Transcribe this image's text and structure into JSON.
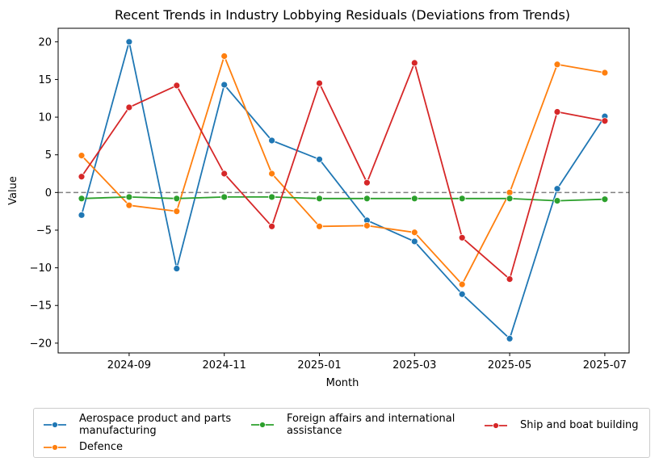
{
  "chart_data": {
    "type": "line",
    "title": "Recent Trends in Industry Lobbying Residuals (Deviations from Trends)",
    "xlabel": "Month",
    "ylabel": "Value",
    "x": [
      "2024-08",
      "2024-09",
      "2024-10",
      "2024-11",
      "2024-12",
      "2025-01",
      "2025-02",
      "2025-03",
      "2025-04",
      "2025-05",
      "2025-06",
      "2025-07"
    ],
    "x_ticks": [
      "2024-09",
      "2024-11",
      "2025-01",
      "2025-03",
      "2025-05",
      "2025-07"
    ],
    "y_ticks": [
      -20,
      -15,
      -10,
      -5,
      0,
      5,
      10,
      15,
      20
    ],
    "ylim": [
      -21.3,
      21.8
    ],
    "reference_line": {
      "y": 0,
      "style": "dashed",
      "color": "#808080"
    },
    "grid": false,
    "legend_position": "bottom",
    "series": [
      {
        "name": "Aerospace product and parts manufacturing",
        "color": "#1f77b4",
        "values": [
          -3.0,
          20.0,
          -10.1,
          14.3,
          6.9,
          4.4,
          -3.7,
          -6.5,
          -13.5,
          -19.4,
          0.5,
          10.1
        ]
      },
      {
        "name": "Defence",
        "color": "#ff7f0e",
        "values": [
          4.9,
          -1.7,
          -2.5,
          18.1,
          2.5,
          -4.5,
          -4.4,
          -5.3,
          -12.2,
          0.0,
          17.0,
          15.9
        ]
      },
      {
        "name": "Foreign affairs and international assistance",
        "color": "#2ca02c",
        "values": [
          -0.8,
          -0.6,
          -0.8,
          -0.6,
          -0.6,
          -0.8,
          -0.8,
          -0.8,
          -0.8,
          -0.8,
          -1.1,
          -0.9
        ]
      },
      {
        "name": "Ship and boat building",
        "color": "#d62728",
        "values": [
          2.1,
          11.3,
          14.2,
          2.5,
          -4.5,
          14.5,
          1.3,
          17.2,
          -6.0,
          -11.5,
          10.7,
          9.5
        ]
      }
    ]
  },
  "legend": {
    "items": [
      {
        "label_lines": [
          "Aerospace product and parts",
          "manufacturing"
        ],
        "color": "#1f77b4"
      },
      {
        "label_lines": [
          "Defence"
        ],
        "color": "#ff7f0e"
      },
      {
        "label_lines": [
          "Foreign affairs and international",
          "assistance"
        ],
        "color": "#2ca02c"
      },
      {
        "label_lines": [
          "Ship and boat building"
        ],
        "color": "#d62728"
      }
    ]
  }
}
